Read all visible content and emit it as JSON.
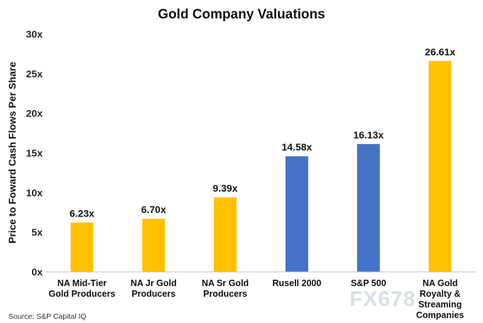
{
  "chart_data": {
    "type": "bar",
    "title": "Gold Company Valuations",
    "xlabel": "",
    "ylabel": "Price to Foward Cash Flows Per Share",
    "ylim": [
      0,
      30
    ],
    "yticks": [
      0,
      5,
      10,
      15,
      20,
      25,
      30
    ],
    "ytick_labels": [
      "0x",
      "5x",
      "10x",
      "15x",
      "20x",
      "25x",
      "30x"
    ],
    "categories": [
      [
        "NA Mid-Tier",
        "Gold Producers"
      ],
      [
        "NA Jr Gold",
        "Producers"
      ],
      [
        "NA Sr Gold",
        "Producers"
      ],
      [
        "Rusell 2000"
      ],
      [
        "S&P 500"
      ],
      [
        "NA Gold",
        "Royalty &",
        "Streaming",
        "Companies"
      ]
    ],
    "values": [
      6.23,
      6.7,
      9.39,
      14.58,
      16.13,
      26.61
    ],
    "data_labels": [
      "6.23x",
      "6.70x",
      "9.39x",
      "14.58x",
      "16.13x",
      "26.61x"
    ],
    "colors": [
      "#FFC000",
      "#FFC000",
      "#FFC000",
      "#4472C4",
      "#4472C4",
      "#FFC000"
    ],
    "grid": false,
    "legend": "none"
  },
  "source": "Source: S&P Capital IQ",
  "watermark": "FX678"
}
